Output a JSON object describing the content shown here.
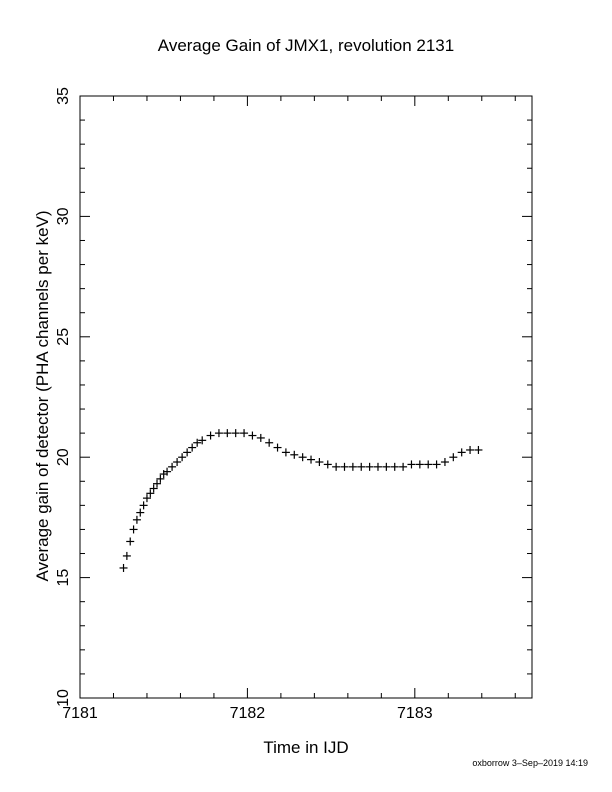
{
  "chart_data": {
    "type": "scatter",
    "title": "Average Gain of JMX1, revolution 2131",
    "xlabel": "Time in IJD",
    "ylabel": "Average gain of detector (PHA channels per keV)",
    "xlim": [
      7181.0,
      7183.7
    ],
    "ylim": [
      10,
      35
    ],
    "xticks": [
      7181,
      7182,
      7183
    ],
    "yticks": [
      10,
      15,
      20,
      25,
      30,
      35
    ],
    "grid": false,
    "marker": "plus",
    "series": [
      {
        "x": [
          7181.26,
          7181.28,
          7181.3,
          7181.32,
          7181.34,
          7181.36,
          7181.38,
          7181.4,
          7181.42,
          7181.44,
          7181.46,
          7181.48,
          7181.5,
          7181.52,
          7181.55,
          7181.58,
          7181.61,
          7181.64,
          7181.67,
          7181.7,
          7181.73,
          7181.78,
          7181.83,
          7181.88,
          7181.93,
          7181.98,
          7182.03,
          7182.08,
          7182.13,
          7182.18,
          7182.23,
          7182.28,
          7182.33,
          7182.38,
          7182.43,
          7182.48,
          7182.53,
          7182.58,
          7182.63,
          7182.68,
          7182.73,
          7182.78,
          7182.83,
          7182.88,
          7182.93,
          7182.98,
          7183.03,
          7183.08,
          7183.13,
          7183.18,
          7183.23,
          7183.28,
          7183.33,
          7183.38
        ],
        "y": [
          15.4,
          15.9,
          16.5,
          17.0,
          17.4,
          17.7,
          18.0,
          18.3,
          18.5,
          18.7,
          18.9,
          19.1,
          19.3,
          19.4,
          19.6,
          19.8,
          20.0,
          20.2,
          20.4,
          20.6,
          20.7,
          20.9,
          21.0,
          21.0,
          21.0,
          21.0,
          20.9,
          20.8,
          20.6,
          20.4,
          20.2,
          20.1,
          20.0,
          19.9,
          19.8,
          19.7,
          19.6,
          19.6,
          19.6,
          19.6,
          19.6,
          19.6,
          19.6,
          19.6,
          19.6,
          19.7,
          19.7,
          19.7,
          19.7,
          19.8,
          20.0,
          20.2,
          20.3,
          20.3
        ]
      }
    ]
  },
  "footer": "oxborrow  3–Sep–2019 14:19"
}
